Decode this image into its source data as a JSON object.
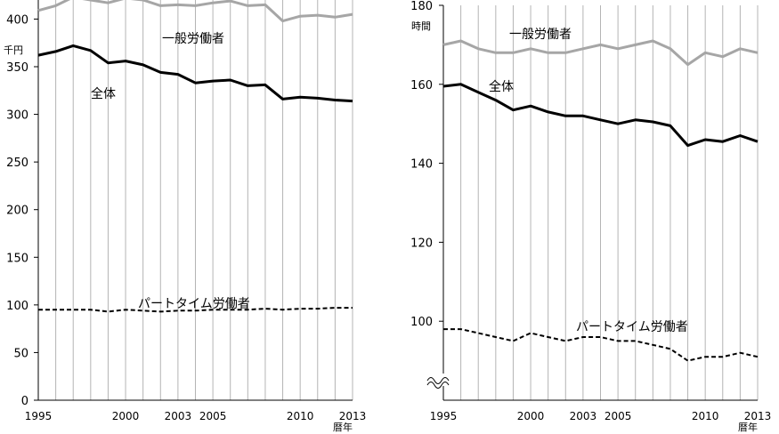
{
  "chart_data": [
    {
      "type": "line",
      "unit": "千円",
      "xunit": "暦年",
      "x": [
        1995,
        1996,
        1997,
        1998,
        1999,
        2000,
        2001,
        2002,
        2003,
        2004,
        2005,
        2006,
        2007,
        2008,
        2009,
        2010,
        2011,
        2012,
        2013
      ],
      "xticks": [
        "1995",
        "2000",
        "2003",
        "2005",
        "2010",
        "2013"
      ],
      "xtickvals": [
        1995,
        2000,
        2003,
        2005,
        2010,
        2013
      ],
      "ylim": [
        0,
        420
      ],
      "yticks": [
        "0",
        "50",
        "100",
        "150",
        "200",
        "250",
        "300",
        "350",
        "400"
      ],
      "ytickvals": [
        0,
        50,
        100,
        150,
        200,
        250,
        300,
        350,
        400
      ],
      "series": [
        {
          "name": "一般労働者",
          "style": "gray",
          "color": "#a6a6a6",
          "values": [
            409,
            414,
            423,
            420,
            417,
            422,
            420,
            414,
            415,
            414,
            417,
            419,
            414,
            415,
            398,
            403,
            404,
            402,
            405
          ]
        },
        {
          "name": "全体",
          "style": "solid",
          "color": "#000000",
          "values": [
            362,
            366,
            372,
            367,
            354,
            356,
            352,
            344,
            342,
            333,
            335,
            336,
            330,
            331,
            316,
            318,
            317,
            315,
            314
          ]
        },
        {
          "name": "パートタイム労働者",
          "style": "dashed",
          "color": "#000000",
          "values": [
            95,
            95,
            95,
            95,
            93,
            95,
            94,
            93,
            94,
            94,
            95,
            95,
            95,
            96,
            95,
            96,
            96,
            97,
            97
          ]
        }
      ]
    },
    {
      "type": "line",
      "unit": "時間",
      "xunit": "暦年",
      "x": [
        1995,
        1996,
        1997,
        1998,
        1999,
        2000,
        2001,
        2002,
        2003,
        2004,
        2005,
        2006,
        2007,
        2008,
        2009,
        2010,
        2011,
        2012,
        2013
      ],
      "xticks": [
        "1995",
        "2000",
        "2003",
        "2005",
        "2010",
        "2013"
      ],
      "xtickvals": [
        1995,
        2000,
        2003,
        2005,
        2010,
        2013
      ],
      "ylim": [
        80,
        180
      ],
      "axis_break": true,
      "yticks": [
        "100",
        "120",
        "140",
        "160",
        "180"
      ],
      "ytickvals": [
        100,
        120,
        140,
        160,
        180
      ],
      "series": [
        {
          "name": "一般労働者",
          "style": "gray",
          "color": "#a6a6a6",
          "values": [
            170,
            171,
            169,
            168,
            168,
            169,
            168,
            168,
            169,
            170,
            169,
            170,
            171,
            169,
            165,
            168,
            167,
            169,
            168
          ]
        },
        {
          "name": "全体",
          "style": "solid",
          "color": "#000000",
          "values": [
            159.5,
            160,
            158,
            156,
            153.5,
            154.5,
            153,
            152,
            152,
            151,
            150,
            151,
            150.5,
            149.5,
            144.5,
            146,
            145.5,
            147,
            145.5
          ]
        },
        {
          "name": "パートタイム労働者",
          "style": "dashed",
          "color": "#000000",
          "values": [
            98,
            98,
            97,
            96,
            95,
            97,
            96,
            95,
            96,
            96,
            95,
            95,
            94,
            93,
            90,
            91,
            91,
            92,
            91
          ]
        }
      ]
    }
  ]
}
